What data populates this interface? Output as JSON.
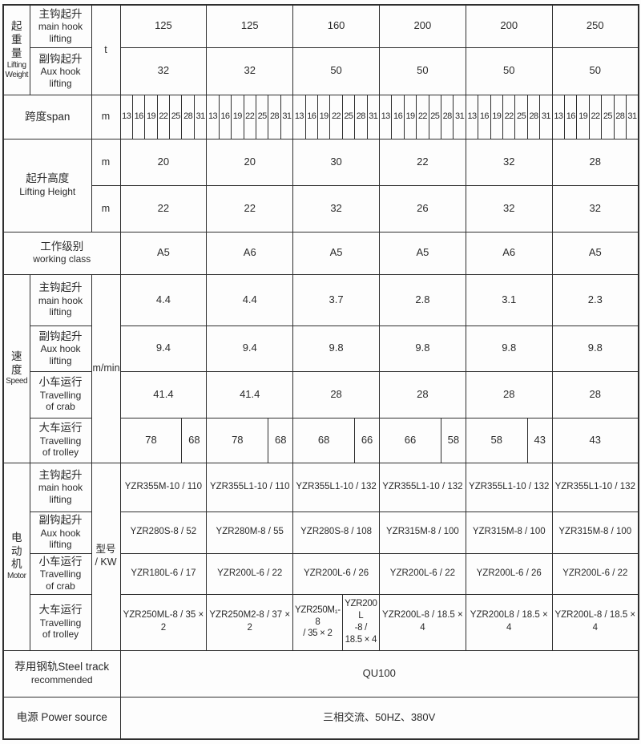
{
  "page": {
    "background": "#fdfdfd",
    "border_color": "#2e2e2e",
    "text_color": "#2a2a2a"
  },
  "table": {
    "rows": [
      {
        "cells": [
          {
            "type": "group",
            "rowspan": 2,
            "lines": [
              "起",
              "重",
              "量",
              "Lifting",
              "Weight"
            ]
          },
          {
            "type": "label",
            "lines": [
              "主钩起升",
              "main hook",
              "lifting"
            ]
          },
          {
            "type": "unit",
            "rowspan": 2,
            "text": "t"
          },
          {
            "type": "value",
            "colspan": 7,
            "text": "125"
          },
          {
            "type": "value",
            "colspan": 7,
            "text": "125"
          },
          {
            "type": "value",
            "colspan": 7,
            "text": "160"
          },
          {
            "type": "value",
            "colspan": 7,
            "text": "200"
          },
          {
            "type": "value",
            "colspan": 7,
            "text": "200"
          },
          {
            "type": "value",
            "colspan": 7,
            "text": "250"
          }
        ]
      },
      {
        "cells": [
          {
            "type": "label",
            "lines": [
              "副钩起升",
              "Aux hook",
              "lifting"
            ]
          },
          {
            "type": "value",
            "colspan": 7,
            "text": "32"
          },
          {
            "type": "value",
            "colspan": 7,
            "text": "32"
          },
          {
            "type": "value",
            "colspan": 7,
            "text": "50"
          },
          {
            "type": "value",
            "colspan": 7,
            "text": "50"
          },
          {
            "type": "value",
            "colspan": 7,
            "text": "50"
          },
          {
            "type": "value",
            "colspan": 7,
            "text": "50"
          }
        ]
      },
      {
        "cells": [
          {
            "type": "label",
            "colspan": 2,
            "text": "跨度span"
          },
          {
            "type": "unit",
            "text": "m"
          },
          {
            "type": "spanset",
            "values": [
              "13",
              "16",
              "19",
              "22",
              "25",
              "28",
              "31"
            ]
          },
          {
            "type": "spanset",
            "values": [
              "13",
              "16",
              "19",
              "22",
              "25",
              "28",
              "31"
            ]
          },
          {
            "type": "spanset",
            "values": [
              "13",
              "16",
              "19",
              "22",
              "25",
              "28",
              "31"
            ]
          },
          {
            "type": "spanset",
            "values": [
              "13",
              "16",
              "19",
              "22",
              "25",
              "28",
              "31"
            ]
          },
          {
            "type": "spanset",
            "values": [
              "13",
              "16",
              "19",
              "22",
              "25",
              "28",
              "31"
            ]
          },
          {
            "type": "spanset",
            "values": [
              "13",
              "16",
              "19",
              "22",
              "25",
              "28",
              "31"
            ]
          }
        ]
      },
      {
        "cells": [
          {
            "type": "label",
            "colspan": 2,
            "rowspan": 2,
            "lines": [
              "起升高度",
              "Lifting Height"
            ]
          },
          {
            "type": "unit",
            "text": "m"
          },
          {
            "type": "value",
            "colspan": 7,
            "text": "20"
          },
          {
            "type": "value",
            "colspan": 7,
            "text": "20"
          },
          {
            "type": "value",
            "colspan": 7,
            "text": "30"
          },
          {
            "type": "value",
            "colspan": 7,
            "text": "22"
          },
          {
            "type": "value",
            "colspan": 7,
            "text": "32"
          },
          {
            "type": "value",
            "colspan": 7,
            "text": "28"
          }
        ]
      },
      {
        "cells": [
          {
            "type": "unit",
            "text": "m"
          },
          {
            "type": "value",
            "colspan": 7,
            "text": "22"
          },
          {
            "type": "value",
            "colspan": 7,
            "text": "22"
          },
          {
            "type": "value",
            "colspan": 7,
            "text": "32"
          },
          {
            "type": "value",
            "colspan": 7,
            "text": "26"
          },
          {
            "type": "value",
            "colspan": 7,
            "text": "32"
          },
          {
            "type": "value",
            "colspan": 7,
            "text": "32"
          }
        ]
      },
      {
        "cells": [
          {
            "type": "label",
            "colspan": 3,
            "lines": [
              "工作级别",
              "working class"
            ]
          },
          {
            "type": "value",
            "colspan": 7,
            "text": "A5"
          },
          {
            "type": "value",
            "colspan": 7,
            "text": "A6"
          },
          {
            "type": "value",
            "colspan": 7,
            "text": "A5"
          },
          {
            "type": "value",
            "colspan": 7,
            "text": "A5"
          },
          {
            "type": "value",
            "colspan": 7,
            "text": "A6"
          },
          {
            "type": "value",
            "colspan": 7,
            "text": "A5"
          }
        ]
      },
      {
        "cells": [
          {
            "type": "group",
            "rowspan": 4,
            "lines": [
              "速",
              "度",
              "Speed"
            ]
          },
          {
            "type": "label",
            "lines": [
              "主钩起升",
              "main hook",
              "lifting"
            ]
          },
          {
            "type": "unit",
            "rowspan": 4,
            "text": "m/min"
          },
          {
            "type": "value",
            "colspan": 7,
            "text": "4.4"
          },
          {
            "type": "value",
            "colspan": 7,
            "text": "4.4"
          },
          {
            "type": "value",
            "colspan": 7,
            "text": "3.7"
          },
          {
            "type": "value",
            "colspan": 7,
            "text": "2.8"
          },
          {
            "type": "value",
            "colspan": 7,
            "text": "3.1"
          },
          {
            "type": "value",
            "colspan": 7,
            "text": "2.3"
          }
        ]
      },
      {
        "cells": [
          {
            "type": "label",
            "lines": [
              "副钩起升",
              "Aux hook",
              "lifting"
            ]
          },
          {
            "type": "value",
            "colspan": 7,
            "text": "9.4"
          },
          {
            "type": "value",
            "colspan": 7,
            "text": "9.4"
          },
          {
            "type": "value",
            "colspan": 7,
            "text": "9.8"
          },
          {
            "type": "value",
            "colspan": 7,
            "text": "9.8"
          },
          {
            "type": "value",
            "colspan": 7,
            "text": "9.8"
          },
          {
            "type": "value",
            "colspan": 7,
            "text": "9.8"
          }
        ]
      },
      {
        "cells": [
          {
            "type": "label",
            "lines": [
              "小车运行",
              "Travelling",
              "of crab"
            ]
          },
          {
            "type": "value",
            "colspan": 7,
            "text": "41.4"
          },
          {
            "type": "value",
            "colspan": 7,
            "text": "41.4"
          },
          {
            "type": "value",
            "colspan": 7,
            "text": "28"
          },
          {
            "type": "value",
            "colspan": 7,
            "text": "28"
          },
          {
            "type": "value",
            "colspan": 7,
            "text": "28"
          },
          {
            "type": "value",
            "colspan": 7,
            "text": "28"
          }
        ]
      },
      {
        "cells": [
          {
            "type": "label",
            "lines": [
              "大车运行",
              "Travelling",
              "of trolley"
            ]
          },
          {
            "type": "value",
            "colspan": 5,
            "text": "78"
          },
          {
            "type": "value",
            "colspan": 2,
            "text": "68"
          },
          {
            "type": "value",
            "colspan": 5,
            "text": "78"
          },
          {
            "type": "value",
            "colspan": 2,
            "text": "68"
          },
          {
            "type": "value",
            "colspan": 5,
            "text": "68"
          },
          {
            "type": "value",
            "colspan": 2,
            "text": "66"
          },
          {
            "type": "value",
            "colspan": 5,
            "text": "66"
          },
          {
            "type": "value",
            "colspan": 2,
            "text": "58"
          },
          {
            "type": "value",
            "colspan": 5,
            "text": "58"
          },
          {
            "type": "value",
            "colspan": 2,
            "text": "43"
          },
          {
            "type": "value",
            "colspan": 7,
            "text": "43"
          }
        ]
      },
      {
        "cells": [
          {
            "type": "group",
            "rowspan": 4,
            "lines": [
              "电",
              "动",
              "机",
              "Motor"
            ]
          },
          {
            "type": "label",
            "lines": [
              "主钩起升",
              "main hook",
              "lifting"
            ]
          },
          {
            "type": "unit",
            "rowspan": 4,
            "lines": [
              "型号",
              "/ KW"
            ]
          },
          {
            "type": "value",
            "colspan": 7,
            "text": "YZR355M-10 / 110"
          },
          {
            "type": "value",
            "colspan": 7,
            "text": "YZR355L1-10 / 110"
          },
          {
            "type": "value",
            "colspan": 7,
            "text": "YZR355L1-10 / 132"
          },
          {
            "type": "value",
            "colspan": 7,
            "text": "YZR355L1-10 / 132"
          },
          {
            "type": "value",
            "colspan": 7,
            "text": "YZR355L1-10 / 132"
          },
          {
            "type": "value",
            "colspan": 7,
            "text": "YZR355L1-10 / 132"
          }
        ]
      },
      {
        "cells": [
          {
            "type": "label",
            "lines": [
              "副钩起升",
              "Aux hook",
              "lifting"
            ]
          },
          {
            "type": "value",
            "colspan": 7,
            "text": "YZR280S-8 / 52"
          },
          {
            "type": "value",
            "colspan": 7,
            "text": "YZR280M-8 / 55"
          },
          {
            "type": "value",
            "colspan": 7,
            "text": "YZR280S-8 / 108"
          },
          {
            "type": "value",
            "colspan": 7,
            "text": "YZR315M-8 / 100"
          },
          {
            "type": "value",
            "colspan": 7,
            "text": "YZR315M-8 / 100"
          },
          {
            "type": "value",
            "colspan": 7,
            "text": "YZR315M-8 / 100"
          }
        ]
      },
      {
        "cells": [
          {
            "type": "label",
            "lines": [
              "小车运行",
              "Travelling",
              "of crab"
            ]
          },
          {
            "type": "value",
            "colspan": 7,
            "text": "YZR180L-6 / 17"
          },
          {
            "type": "value",
            "colspan": 7,
            "text": "YZR200L-6 / 22"
          },
          {
            "type": "value",
            "colspan": 7,
            "text": "YZR200L-6 / 26"
          },
          {
            "type": "value",
            "colspan": 7,
            "text": "YZR200L-6 / 22"
          },
          {
            "type": "value",
            "colspan": 7,
            "text": "YZR200L-6 / 26"
          },
          {
            "type": "value",
            "colspan": 7,
            "text": "YZR200L-6 / 22"
          }
        ]
      },
      {
        "cells": [
          {
            "type": "label",
            "lines": [
              "大车运行",
              "Travelling",
              "of trolley"
            ]
          },
          {
            "type": "value",
            "colspan": 7,
            "text": "YZR250ML-8 / 35 × 2"
          },
          {
            "type": "value",
            "colspan": 7,
            "text": "YZR250M2-8 / 37 × 2"
          },
          {
            "type": "value",
            "colspan": 4,
            "small": true,
            "lines": [
              "YZR250M₁-8",
              "/ 35 × 2"
            ]
          },
          {
            "type": "value",
            "colspan": 3,
            "small": true,
            "lines": [
              "YZR200L",
              "-8 /",
              "18.5 × 4"
            ]
          },
          {
            "type": "value",
            "colspan": 7,
            "text": "YZR200L-8 / 18.5 × 4"
          },
          {
            "type": "value",
            "colspan": 7,
            "text": "YZR200L8 / 18.5 × 4"
          },
          {
            "type": "value",
            "colspan": 7,
            "text": "YZR200L-8 / 18.5 × 4"
          }
        ]
      },
      {
        "cells": [
          {
            "type": "label",
            "colspan": 3,
            "lines": [
              "荐用钢轨Steel track",
              "recommended"
            ]
          },
          {
            "type": "value",
            "colspan": 42,
            "text": "QU100"
          }
        ]
      },
      {
        "cells": [
          {
            "type": "label",
            "colspan": 3,
            "text": "电源 Power source"
          },
          {
            "type": "value",
            "colspan": 42,
            "text": "三相交流、50HZ、380V"
          }
        ]
      }
    ]
  }
}
